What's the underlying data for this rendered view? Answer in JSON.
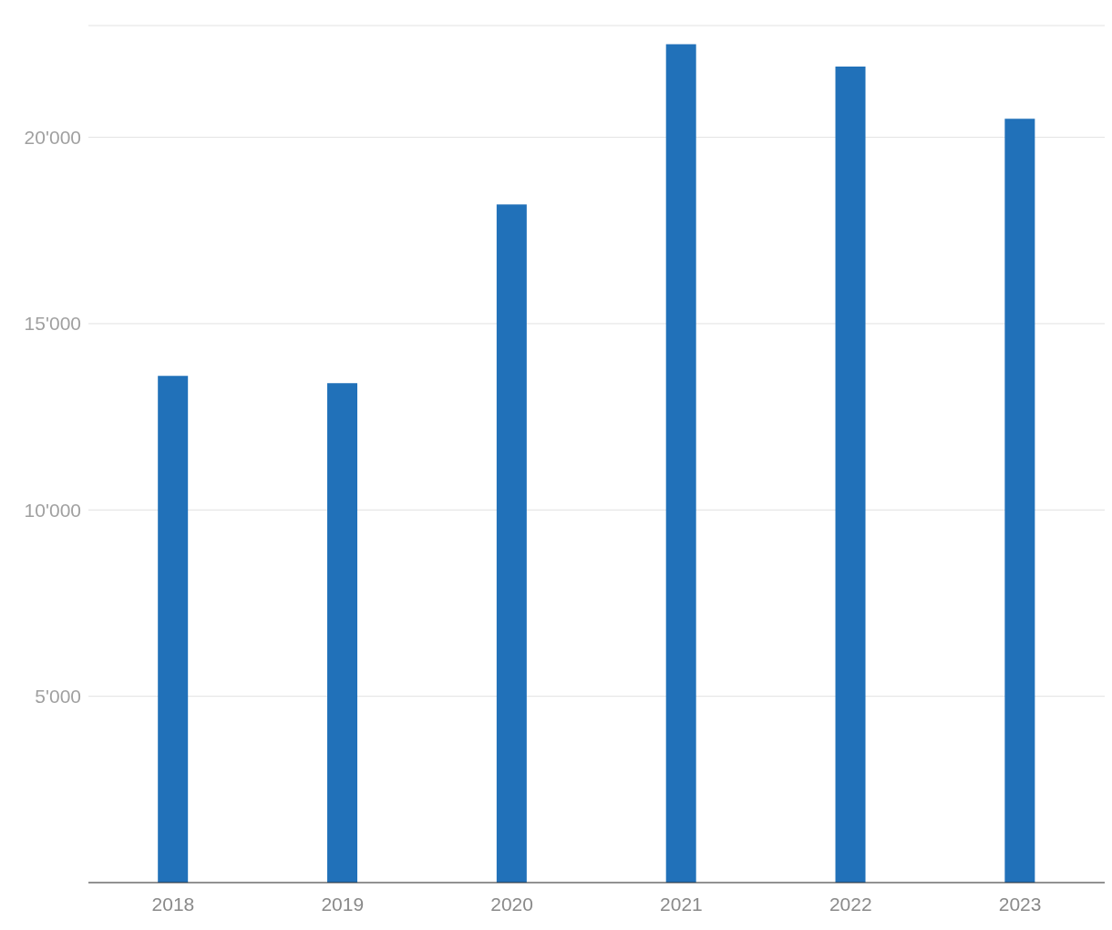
{
  "chart_data": {
    "type": "bar",
    "categories": [
      "2018",
      "2019",
      "2020",
      "2021",
      "2022",
      "2023"
    ],
    "values": [
      13600,
      13400,
      18200,
      22500,
      21900,
      20500
    ],
    "color": "#2171b9",
    "ylim": [
      0,
      23000
    ],
    "yticks": [
      {
        "value": 5000,
        "label": "5'000"
      },
      {
        "value": 10000,
        "label": "10'000"
      },
      {
        "value": 15000,
        "label": "15'000"
      },
      {
        "value": 20000,
        "label": "20'000"
      }
    ],
    "grid": "y"
  }
}
